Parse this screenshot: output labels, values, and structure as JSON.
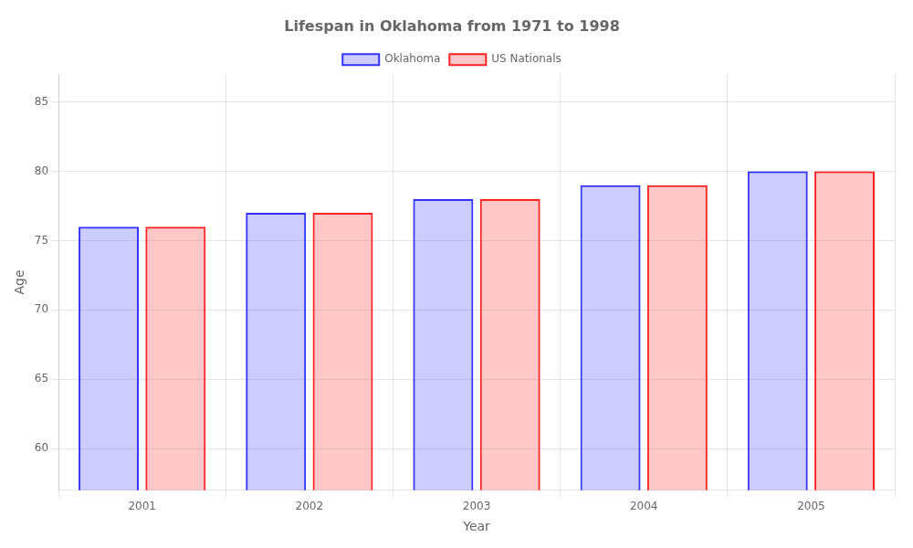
{
  "chart_data": {
    "type": "bar",
    "title": "Lifespan in Oklahoma from 1971 to 1998",
    "xlabel": "Year",
    "ylabel": "Age",
    "categories": [
      "2001",
      "2002",
      "2003",
      "2004",
      "2005"
    ],
    "series": [
      {
        "name": "Oklahoma",
        "color": "#3333ff",
        "values": [
          76,
          77,
          78,
          79,
          80
        ]
      },
      {
        "name": "US Nationals",
        "color": "#ff2222",
        "values": [
          76,
          77,
          78,
          79,
          80
        ]
      }
    ],
    "ylim": [
      57,
      87
    ],
    "yticks": [
      60,
      65,
      70,
      75,
      80,
      85
    ],
    "grid": true,
    "legend": "top"
  }
}
